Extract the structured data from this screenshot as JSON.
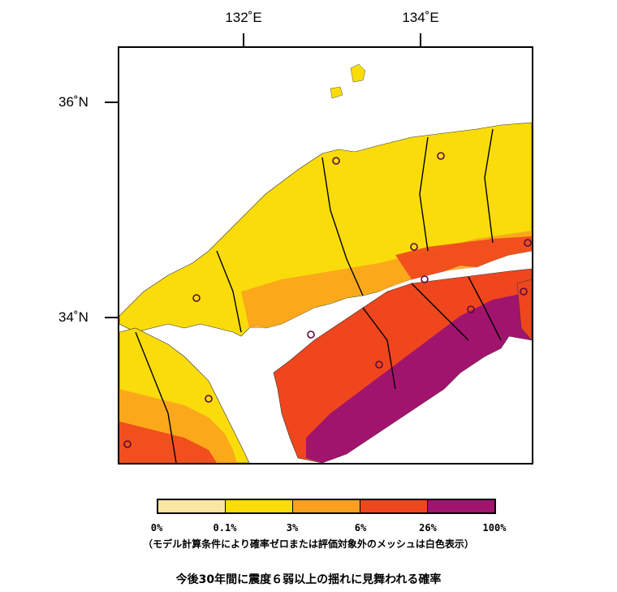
{
  "axes": {
    "lon_ticks": [
      "132˚E",
      "134˚E"
    ],
    "lat_ticks": [
      "36˚N",
      "34˚N"
    ]
  },
  "legend": {
    "breaks": [
      "0%",
      "0.1%",
      "3%",
      "6%",
      "26%",
      "100%"
    ],
    "colors": [
      "#fae6a0",
      "#fadc0a",
      "#faa01e",
      "#f0461e",
      "#dc2d1e",
      "#a0146e"
    ],
    "note": "（モデル計算条件により確率ゼロまたは評価対象外のメッシュは白色表示）"
  },
  "caption": "今後30年間に震度６弱以上の揺れに見舞われる確率",
  "map": {
    "land_color_north": "#fadc0a",
    "land_color_south_coast": "#a0146e",
    "land_color_shikoku_north": "#f0461e",
    "sea_color": "#ffffff"
  }
}
